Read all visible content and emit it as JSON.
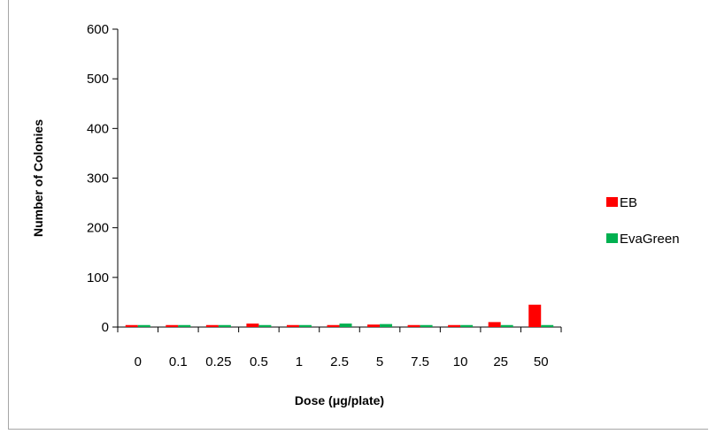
{
  "chart_data": {
    "type": "bar",
    "categories": [
      "0",
      "0.1",
      "0.25",
      "0.5",
      "1",
      "2.5",
      "5",
      "7.5",
      "10",
      "25",
      "50"
    ],
    "series": [
      {
        "name": "EB",
        "color": "#ff0000",
        "values": [
          4,
          4,
          4,
          7,
          4,
          4,
          5,
          4,
          4,
          10,
          45
        ]
      },
      {
        "name": "EvaGreen",
        "color": "#00b050",
        "values": [
          4,
          4,
          4,
          4,
          4,
          7,
          6,
          4,
          4,
          4,
          4
        ]
      }
    ],
    "xlabel": "Dose (μg/plate)",
    "ylabel": "Number of Colonies",
    "ylim": [
      0,
      600
    ],
    "yticks": [
      "0",
      "100",
      "200",
      "300",
      "400",
      "500",
      "600"
    ],
    "grid": false,
    "legend_position": "right"
  }
}
